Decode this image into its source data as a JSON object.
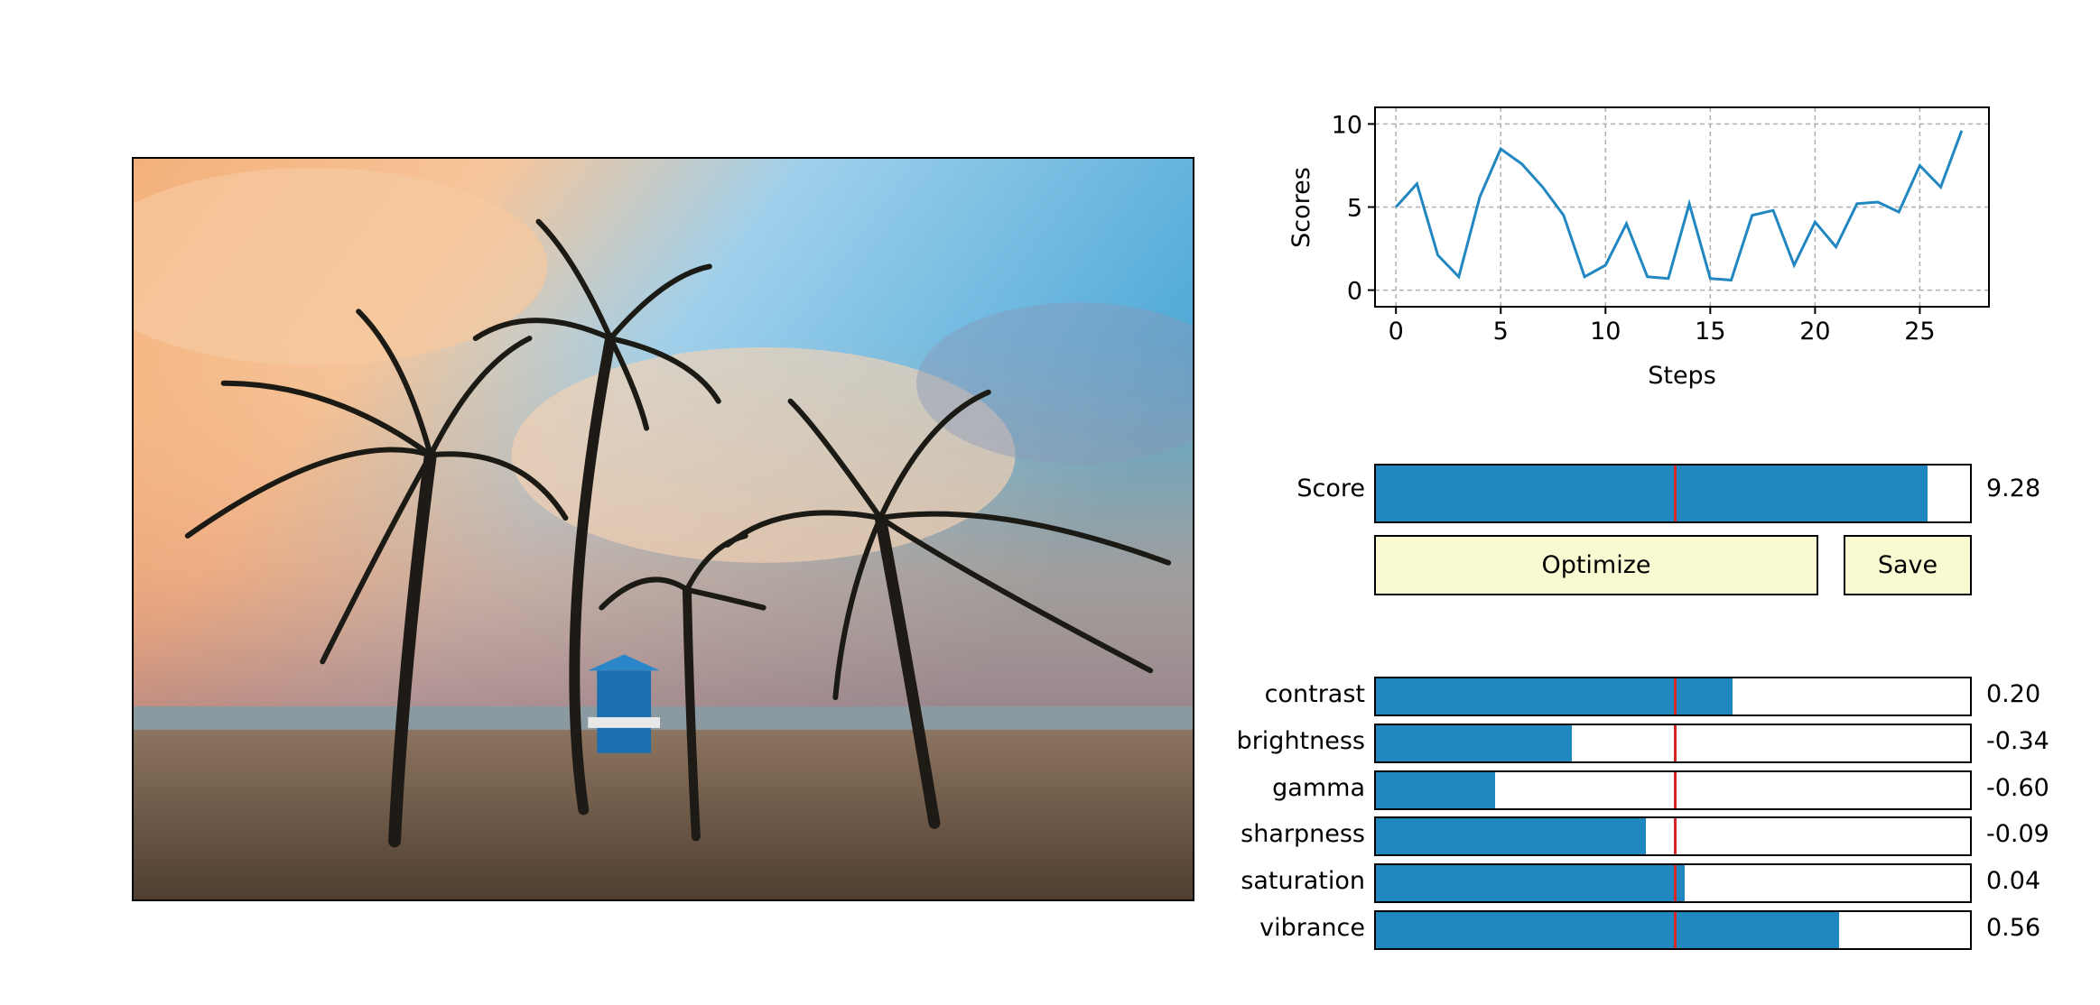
{
  "colors": {
    "accent": "#2187c1",
    "marker": "#d62728",
    "button_bg": "#fafad2"
  },
  "photo": {
    "alt": "beach-photo"
  },
  "chart_data": {
    "type": "line",
    "xlabel": "Steps",
    "ylabel": "Scores",
    "x_ticks": [
      "0",
      "5",
      "10",
      "15",
      "20",
      "25"
    ],
    "y_ticks": [
      "0",
      "5",
      "10"
    ],
    "xlim": [
      -1,
      28.3
    ],
    "ylim": [
      -1,
      11
    ],
    "grid": true,
    "series": [
      {
        "x": [
          0,
          1,
          2,
          3,
          4,
          5,
          6,
          7,
          8,
          9,
          10,
          11,
          12,
          13,
          14,
          15,
          16,
          17,
          18,
          19,
          20,
          21,
          22,
          23,
          24,
          25,
          26,
          27
        ],
        "y": [
          5.0,
          6.4,
          2.1,
          0.8,
          5.6,
          8.5,
          7.6,
          6.2,
          4.5,
          0.8,
          1.5,
          4.0,
          0.8,
          0.7,
          5.2,
          0.7,
          0.6,
          4.5,
          4.8,
          1.5,
          4.1,
          2.6,
          5.2,
          5.3,
          4.7,
          7.5,
          6.2,
          9.6
        ]
      }
    ]
  },
  "score": {
    "label": "Score",
    "value": 9.28,
    "value_text": "9.28"
  },
  "buttons": {
    "optimize": "Optimize",
    "save": "Save"
  },
  "params": [
    {
      "label": "contrast",
      "value": 0.2,
      "value_text": "0.20"
    },
    {
      "label": "brightness",
      "value": -0.34,
      "value_text": "-0.34"
    },
    {
      "label": "gamma",
      "value": -0.6,
      "value_text": "-0.60"
    },
    {
      "label": "sharpness",
      "value": -0.09,
      "value_text": "-0.09"
    },
    {
      "label": "saturation",
      "value": 0.04,
      "value_text": "0.04"
    },
    {
      "label": "vibrance",
      "value": 0.56,
      "value_text": "0.56"
    }
  ]
}
